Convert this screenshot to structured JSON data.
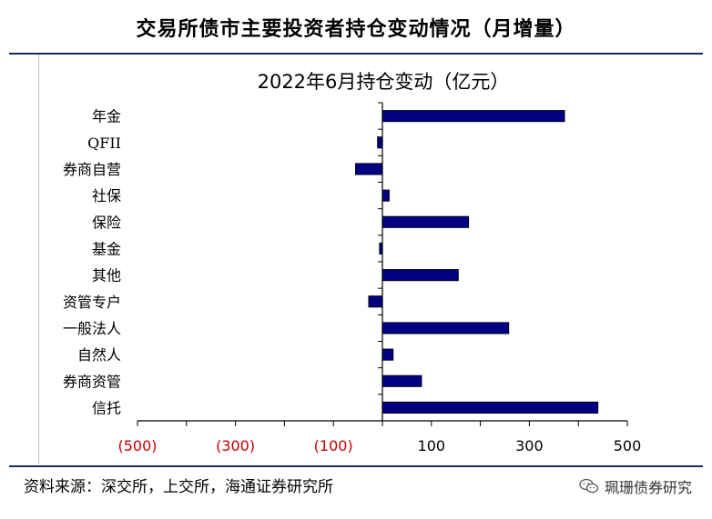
{
  "page": {
    "title": "交易所债市主要投资者持仓变动情况（月增量）",
    "source": "资料来源：深交所，上交所，海通证券研究所",
    "brand": "珮珊债券研究",
    "brand_icon": "wechat-icon"
  },
  "chart_data": {
    "type": "bar",
    "orientation": "horizontal",
    "title": "2022年6月持仓变动（亿元）",
    "categories": [
      "年金",
      "QFII",
      "券商自营",
      "社保",
      "保险",
      "基金",
      "其他",
      "资管专户",
      "一般法人",
      "自然人",
      "券商资管",
      "信托"
    ],
    "values": [
      372,
      -10,
      -55,
      14,
      176,
      -6,
      155,
      -28,
      258,
      22,
      80,
      440
    ],
    "xlim": [
      -500,
      500
    ],
    "xticks": [
      -500,
      -300,
      -100,
      100,
      300,
      500
    ],
    "xtick_labels": [
      "(500)",
      "(300)",
      "(100)",
      "100",
      "300",
      "500"
    ],
    "bar_color": "#000080",
    "negative_label_color": "#cc0000",
    "grid": false,
    "legend": "none"
  }
}
